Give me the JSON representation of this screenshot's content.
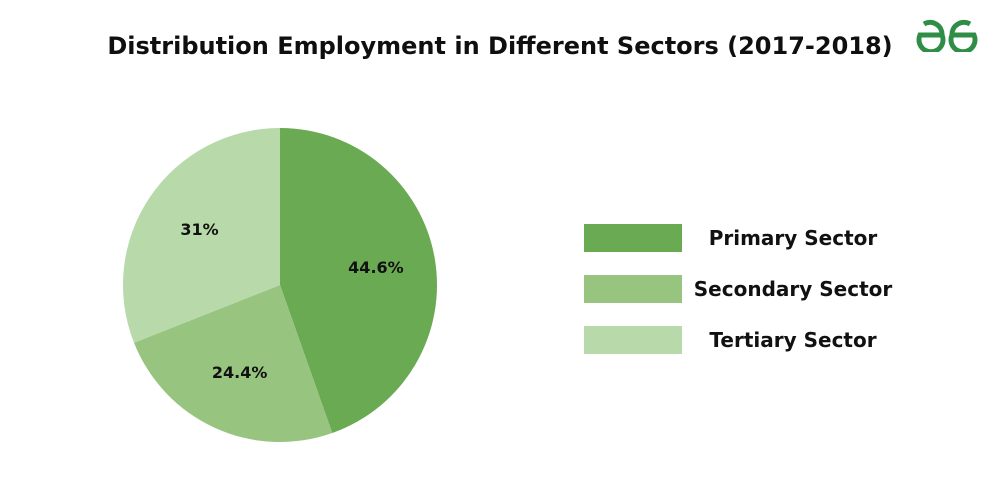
{
  "brand": {
    "logo_name": "geeksforgeeks-logo",
    "logo_color": "#2f8d46"
  },
  "chart_data": {
    "type": "pie",
    "title": "Distribution Employment in Different Sectors (2017-2018)",
    "categories": [
      "Primary Sector",
      "Secondary Sector",
      "Tertiary Sector"
    ],
    "values": [
      44.6,
      24.4,
      31
    ],
    "labels": [
      "44.6%",
      "24.4%",
      "31%"
    ],
    "colors": [
      "#6aaa52",
      "#97c47f",
      "#b8d9a9"
    ],
    "start": "12 o'clock",
    "direction": "clockwise",
    "legend_position": "right"
  }
}
